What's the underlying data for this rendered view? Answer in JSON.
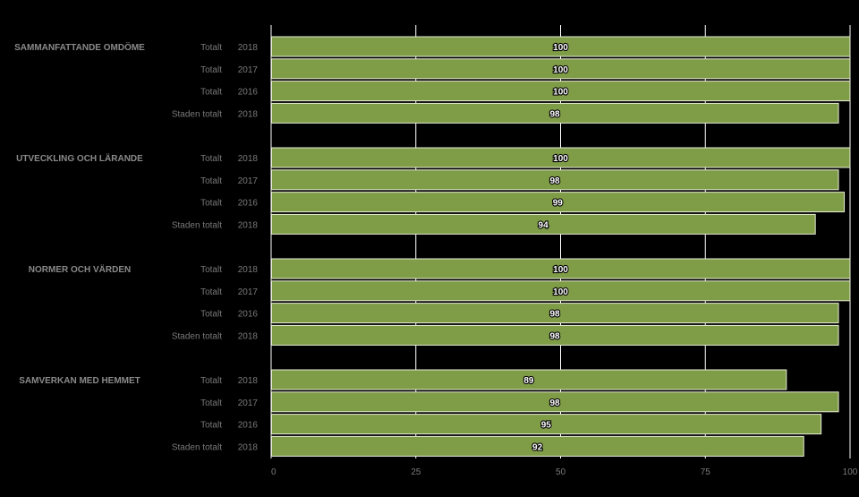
{
  "chart_data": {
    "type": "bar",
    "orientation": "horizontal",
    "xlim": [
      0,
      100
    ],
    "x_ticks": [
      "0",
      "25",
      "50",
      "75",
      "100"
    ],
    "grid": true,
    "colors": {
      "background": "#000000",
      "bar_fill": "#7f9c47",
      "bar_border": "#e8ecd8",
      "grid": "#ffffff",
      "group_label": "#8a8a8a",
      "row_label": "#7a7a7a",
      "value_label": "#ffffff"
    },
    "groups": [
      {
        "label": "SAMMANFATTANDE OMDÖME",
        "rows": [
          {
            "series": "Totalt",
            "year": "2018",
            "value": 100
          },
          {
            "series": "Totalt",
            "year": "2017",
            "value": 100
          },
          {
            "series": "Totalt",
            "year": "2016",
            "value": 100
          },
          {
            "series": "Staden totalt",
            "year": "2018",
            "value": 98
          }
        ]
      },
      {
        "label": "UTVECKLING OCH LÄRANDE",
        "rows": [
          {
            "series": "Totalt",
            "year": "2018",
            "value": 100
          },
          {
            "series": "Totalt",
            "year": "2017",
            "value": 98
          },
          {
            "series": "Totalt",
            "year": "2016",
            "value": 99
          },
          {
            "series": "Staden totalt",
            "year": "2018",
            "value": 94
          }
        ]
      },
      {
        "label": "NORMER OCH VÄRDEN",
        "rows": [
          {
            "series": "Totalt",
            "year": "2018",
            "value": 100
          },
          {
            "series": "Totalt",
            "year": "2017",
            "value": 100
          },
          {
            "series": "Totalt",
            "year": "2016",
            "value": 98
          },
          {
            "series": "Staden totalt",
            "year": "2018",
            "value": 98
          }
        ]
      },
      {
        "label": "SAMVERKAN MED HEMMET",
        "rows": [
          {
            "series": "Totalt",
            "year": "2018",
            "value": 89
          },
          {
            "series": "Totalt",
            "year": "2017",
            "value": 98
          },
          {
            "series": "Totalt",
            "year": "2016",
            "value": 95
          },
          {
            "series": "Staden totalt",
            "year": "2018",
            "value": 92
          }
        ]
      }
    ]
  }
}
